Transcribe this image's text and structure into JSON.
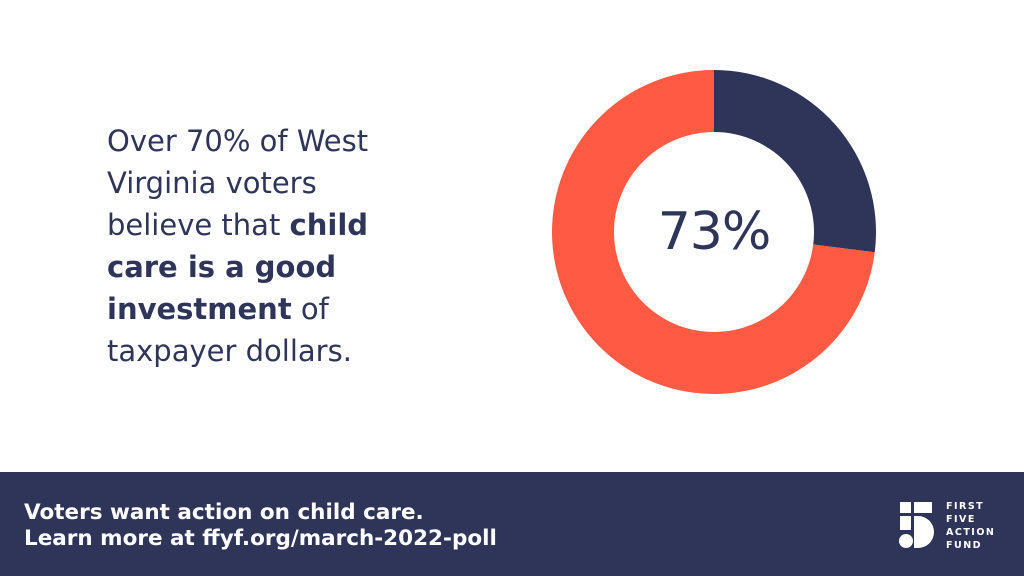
{
  "headline": {
    "part1": "Over 70% of West Virginia voters believe that ",
    "bold": "child care is a good investment",
    "part2": " of taxpayer dollars."
  },
  "chart_data": {
    "type": "pie",
    "style": "donut",
    "slices": [
      {
        "value": 73,
        "color": "#ff5a44"
      },
      {
        "value": 27,
        "color": "#2e3558"
      }
    ],
    "center_label": "73%"
  },
  "footer": {
    "line1": "Voters want action on child care.",
    "line2": "Learn more at ffyf.org/march-2022-poll"
  },
  "logo": {
    "words": [
      "FIRST",
      "FIVE",
      "ACTION",
      "FUND"
    ],
    "icon": "five-logo-icon"
  },
  "colors": {
    "navy": "#2e3558",
    "coral": "#ff5a44",
    "white": "#ffffff"
  }
}
